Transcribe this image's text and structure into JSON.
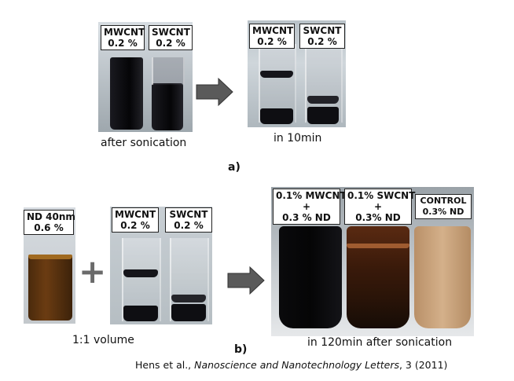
{
  "panel_a": {
    "left_photo": {
      "labels": [
        "MWCNT\n0.2 %",
        "SWCNT\n0.2 %"
      ],
      "caption": "after sonication"
    },
    "right_photo": {
      "labels": [
        "MWCNT\n0.2 %",
        "SWCNT\n0.2 %"
      ],
      "caption": "in 10min"
    },
    "letter": "a)"
  },
  "panel_b": {
    "nd_photo": {
      "label": "ND 40nm\n0.6 %"
    },
    "plus": "+",
    "cnt_photo": {
      "labels": [
        "MWCNT\n0.2 %",
        "SWCNT\n0.2 %"
      ]
    },
    "left_caption": "1:1 volume",
    "mix_photo": {
      "labels": [
        "0.1% MWCNT\n+\n0.3 % ND",
        "0.1% SWCNT\n+\n0.3% ND",
        "CONTROL\n0.3% ND"
      ]
    },
    "right_caption": "in 120min after sonication",
    "letter": "b)"
  },
  "citation": {
    "authors": "Hens et al., ",
    "journal": "Nanoscience and Nanotechnology Letters",
    "rest": ", 3 (2011)"
  },
  "colors": {
    "arrow_fill": "#555555",
    "cnt_black": "#101014",
    "nd_brown": "#6b3c12",
    "control_tan": "#c7a27a"
  }
}
